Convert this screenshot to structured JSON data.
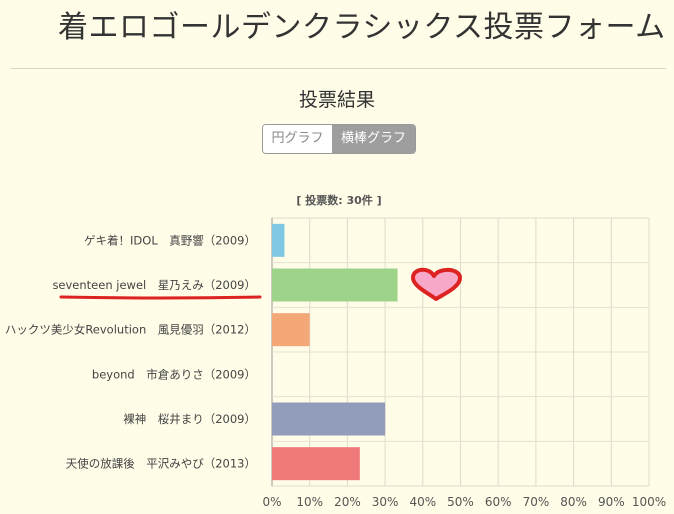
{
  "page": {
    "title": "着エロゴールデンクラシックス投票フォーム"
  },
  "results": {
    "heading": "投票結果",
    "toggle": {
      "pie_label": "円グラフ",
      "bar_label": "横棒グラフ",
      "selected": "bar"
    }
  },
  "chart_data": {
    "type": "bar",
    "orientation": "horizontal",
    "title": "[ 投票数: 30件 ]",
    "categories": [
      "ゲキ着！IDOL　真野響（2009）",
      "seventeen jewel　星乃えみ（2009）",
      "ハックツ美少女Revolution　風見優羽（2012）",
      "beyond　市倉ありさ（2009）",
      "裸神　桜井まり（2009）",
      "天使の放課後　平沢みやび（2013）"
    ],
    "values": [
      3.3,
      33.3,
      10.0,
      0.0,
      30.0,
      23.3
    ],
    "colors": [
      "#7ec8e3",
      "#9ed48a",
      "#f4a777",
      "#cccccc",
      "#929db9",
      "#f07a7a"
    ],
    "xlim": [
      0,
      100
    ],
    "xticks": [
      "0%",
      "10%",
      "20%",
      "30%",
      "40%",
      "50%",
      "60%",
      "70%",
      "80%",
      "90%",
      "100%"
    ],
    "grid": true,
    "annotation": {
      "highlighted_category": "seventeen jewel　星乃えみ（2009）",
      "underline_color": "#dd2222",
      "heart_color": "#f8a8c8",
      "heart_outline": "#dd2222"
    }
  }
}
